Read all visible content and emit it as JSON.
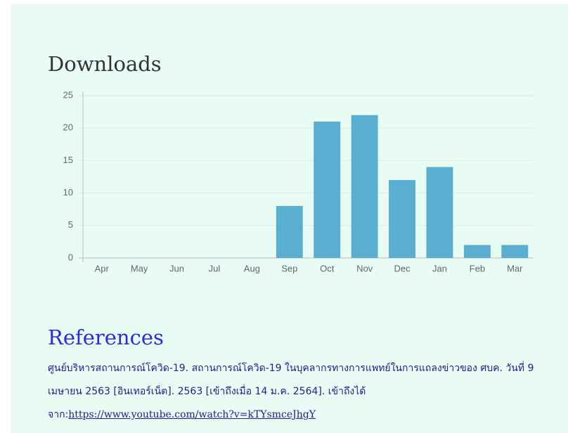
{
  "chart_data": {
    "type": "bar",
    "title": "Downloads",
    "categories": [
      "Apr",
      "May",
      "Jun",
      "Jul",
      "Aug",
      "Sep",
      "Oct",
      "Nov",
      "Dec",
      "Jan",
      "Feb",
      "Mar"
    ],
    "values": [
      0,
      0,
      0,
      0,
      0,
      8,
      21,
      22,
      12,
      14,
      2,
      2
    ],
    "color": "#5aaed0",
    "ylim": [
      0,
      25
    ],
    "yticks": [
      0,
      5,
      10,
      15,
      20,
      25
    ],
    "grid": true
  },
  "references": {
    "title": "References",
    "text": "ศูนย์บริหารสถานการณ์โควิด-19. สถานการณ์โควิด-19 ในบุคลากรทางการแพทย์ในการแถลงข่าวของ ศบค. วันที่ 9 เมษายน 2563 [อินเทอร์เน็ต]. 2563 [เข้าถึงเมื่อ 14 ม.ค. 2564]. เข้าถึงได้จาก:",
    "link": "https://www.youtube.com/watch?v=kTYsmceJhgY"
  }
}
